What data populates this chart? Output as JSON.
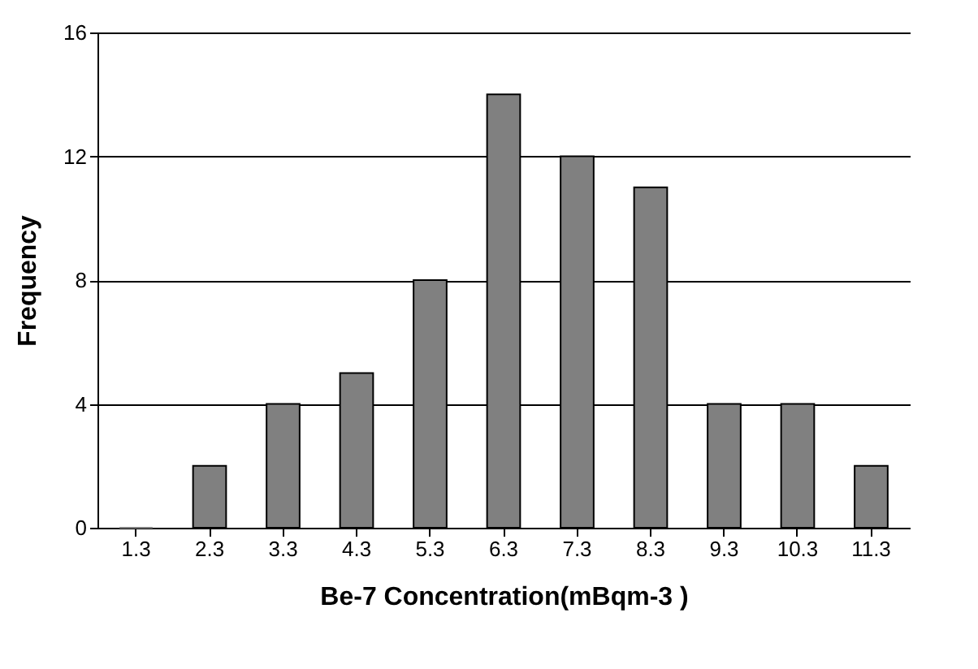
{
  "chart_data": {
    "type": "bar",
    "xlabel": "Be-7 Concentration(mBqm-3 )",
    "ylabel": "Frequency",
    "categories": [
      "1.3",
      "2.3",
      "3.3",
      "4.3",
      "5.3",
      "6.3",
      "7.3",
      "8.3",
      "9.3",
      "10.3",
      "11.3"
    ],
    "values": [
      0,
      2,
      4,
      5,
      8,
      14,
      12,
      11,
      4,
      4,
      2
    ],
    "color": "#808080",
    "ylim": [
      0,
      16
    ],
    "yticks": [
      0,
      4,
      8,
      12,
      16
    ],
    "grid": "y"
  }
}
